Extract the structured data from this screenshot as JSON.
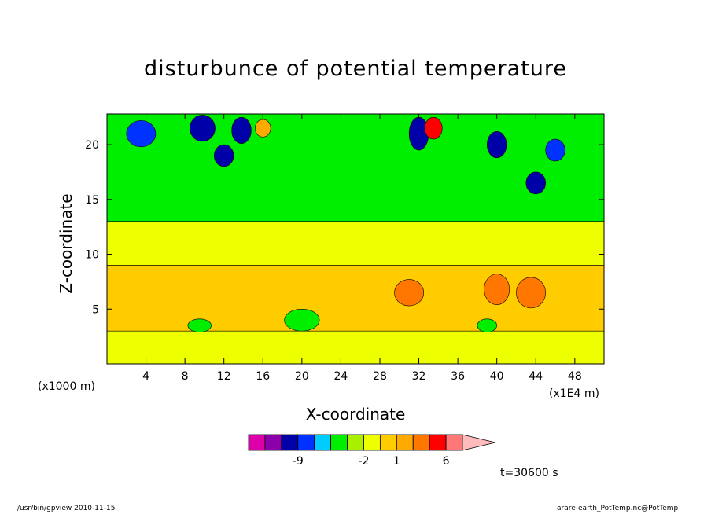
{
  "chart_data": {
    "type": "heatmap",
    "title": "disturbunce of potential temperature",
    "xlabel": "X-coordinate",
    "ylabel": "Z-coordinate",
    "x_unit": "(x1E4 m)",
    "y_unit": "(x1000 m)",
    "xlim": [
      0,
      51
    ],
    "ylim": [
      0,
      22.8
    ],
    "x_ticks": [
      4,
      8,
      12,
      16,
      20,
      24,
      28,
      32,
      36,
      40,
      44,
      48
    ],
    "y_ticks": [
      5,
      10,
      15,
      20
    ],
    "colorbar": {
      "labels": [
        {
          "text": "-9",
          "value": -9
        },
        {
          "text": "-2",
          "value": -2
        },
        {
          "text": "1",
          "value": 1
        },
        {
          "text": "6",
          "value": 6
        }
      ],
      "colors": [
        "#dd00aa",
        "#8a00aa",
        "#0000a8",
        "#0032ff",
        "#00ccff",
        "#00ee00",
        "#aaee00",
        "#eeff00",
        "#ffcc00",
        "#ffaa00",
        "#ff7700",
        "#ff0000",
        "#ff7777",
        "#ffbbbb"
      ]
    },
    "background_level_color": "#eeff00",
    "features": [
      {
        "kind": "band",
        "z": [
          0,
          3
        ],
        "x": [
          0,
          51
        ],
        "color": "#eeff00"
      },
      {
        "kind": "band",
        "z": [
          3,
          9
        ],
        "x": [
          0,
          51
        ],
        "color": "#ffcc00"
      },
      {
        "kind": "band",
        "z": [
          9,
          13
        ],
        "x": [
          0,
          51
        ],
        "color": "#eeff00"
      },
      {
        "kind": "band",
        "z": [
          13,
          22.8
        ],
        "x": [
          0,
          51
        ],
        "color": "#00ee00"
      }
    ],
    "blobs": [
      {
        "x": 3.5,
        "z": 21,
        "rx": 1.5,
        "rz": 1.2,
        "color": "#0032ff"
      },
      {
        "x": 9.8,
        "z": 21.5,
        "rx": 1.3,
        "rz": 1.2,
        "color": "#0000a8"
      },
      {
        "x": 12,
        "z": 19,
        "rx": 1.0,
        "rz": 1.0,
        "color": "#0000a8"
      },
      {
        "x": 13.8,
        "z": 21.3,
        "rx": 1.0,
        "rz": 1.2,
        "color": "#0000a8"
      },
      {
        "x": 16,
        "z": 21.5,
        "rx": 0.8,
        "rz": 0.8,
        "color": "#ffaa00"
      },
      {
        "x": 32,
        "z": 21,
        "rx": 1.0,
        "rz": 1.5,
        "color": "#0000a8"
      },
      {
        "x": 33.5,
        "z": 21.5,
        "rx": 0.9,
        "rz": 1.0,
        "color": "#ff0000"
      },
      {
        "x": 40,
        "z": 20,
        "rx": 1.0,
        "rz": 1.2,
        "color": "#0000a8"
      },
      {
        "x": 44,
        "z": 16.5,
        "rx": 1.0,
        "rz": 1.0,
        "color": "#0000a8"
      },
      {
        "x": 46,
        "z": 19.5,
        "rx": 1.0,
        "rz": 1.0,
        "color": "#0032ff"
      },
      {
        "x": 31,
        "z": 6.5,
        "rx": 1.5,
        "rz": 1.2,
        "color": "#ff7700"
      },
      {
        "x": 40,
        "z": 6.8,
        "rx": 1.3,
        "rz": 1.4,
        "color": "#ff7700"
      },
      {
        "x": 43.5,
        "z": 6.5,
        "rx": 1.5,
        "rz": 1.4,
        "color": "#ff7700"
      },
      {
        "x": 20,
        "z": 4,
        "rx": 1.8,
        "rz": 1.0,
        "color": "#00ee00"
      },
      {
        "x": 9.5,
        "z": 3.5,
        "rx": 1.2,
        "rz": 0.6,
        "color": "#00ee00"
      },
      {
        "x": 39,
        "z": 3.5,
        "rx": 1.0,
        "rz": 0.6,
        "color": "#00ee00"
      }
    ]
  },
  "caption": {
    "time": "t=30600 s",
    "footer_left": "/usr/bin/gpview   2010-11-15",
    "footer_right": "arare-earth_PotTemp.nc@PotTemp"
  }
}
